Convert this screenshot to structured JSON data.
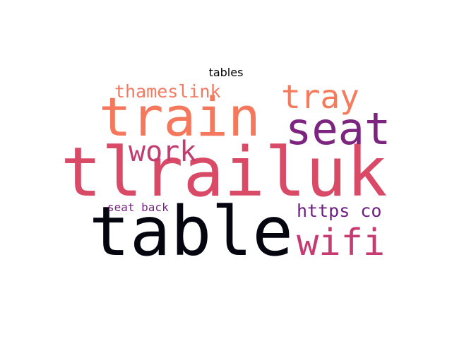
{
  "title": "tables",
  "words": [
    {
      "key": "tlrailuk",
      "text": "tlrailuk",
      "color": "#d94a67"
    },
    {
      "key": "table",
      "text": "table",
      "color": "#050510"
    },
    {
      "key": "train",
      "text": "train",
      "color": "#f5785d"
    },
    {
      "key": "seat",
      "text": "seat",
      "color": "#7d2480"
    },
    {
      "key": "wifi",
      "text": "wifi",
      "color": "#c63c72"
    },
    {
      "key": "tray",
      "text": "tray",
      "color": "#f57b5c"
    },
    {
      "key": "work",
      "text": "work",
      "color": "#c13d70"
    },
    {
      "key": "https",
      "text": "https co",
      "color": "#6e1f80"
    },
    {
      "key": "thameslink",
      "text": "thameslink",
      "color": "#f27a62"
    },
    {
      "key": "seatback",
      "text": "seat back",
      "color": "#7a2581"
    }
  ]
}
